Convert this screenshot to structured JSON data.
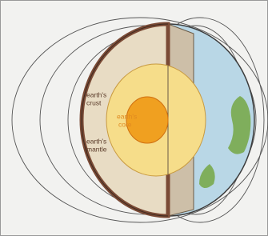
{
  "labels": {
    "crust": [
      "earth's",
      "crust"
    ],
    "core": [
      "earth's",
      "core"
    ],
    "mantle": [
      "earth's",
      "mantle"
    ]
  }
}
